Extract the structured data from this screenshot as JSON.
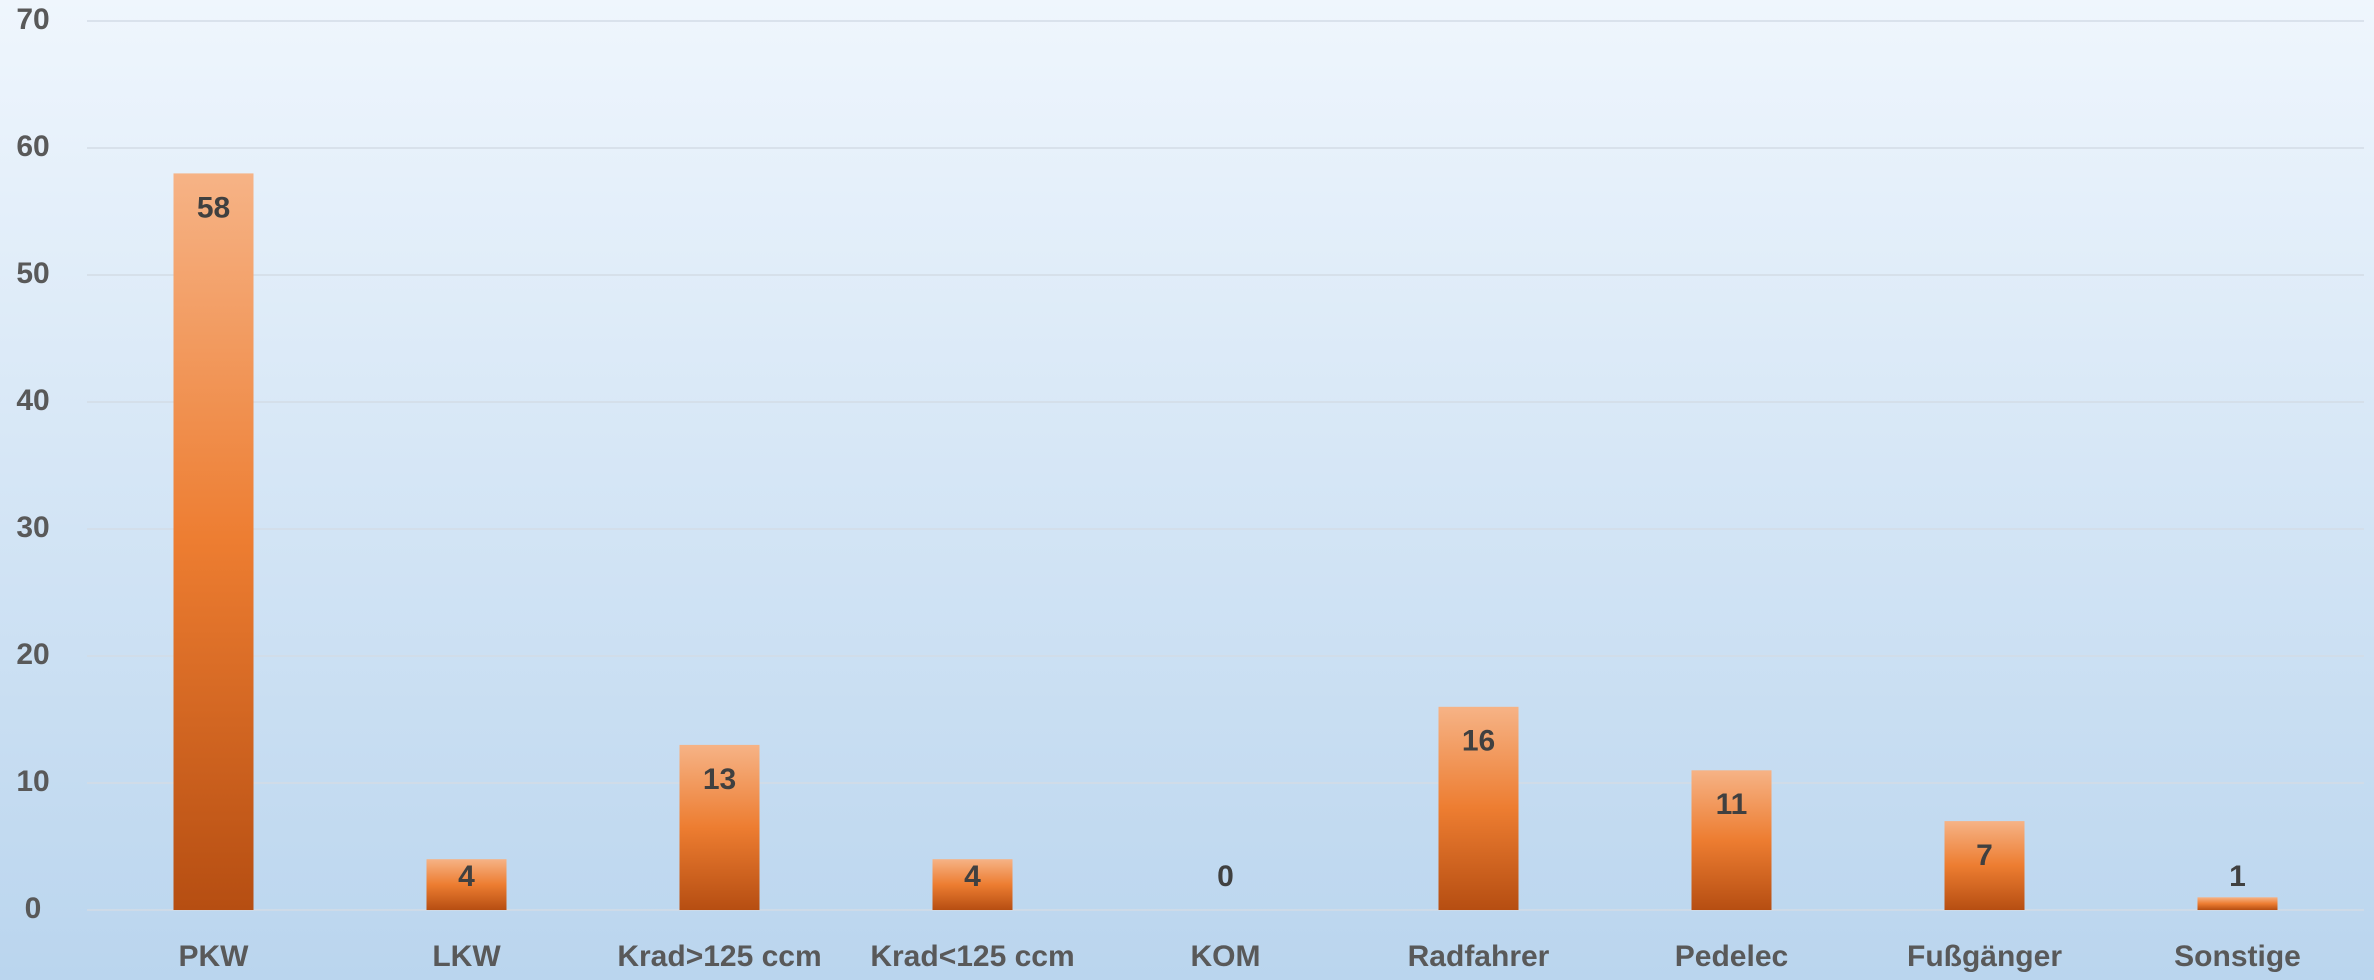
{
  "chart_data": {
    "type": "bar",
    "categories": [
      "PKW",
      "LKW",
      "Krad>125 ccm",
      "Krad<125 ccm",
      "KOM",
      "Radfahrer",
      "Pedelec",
      "Fußgänger",
      "Sonstige"
    ],
    "values": [
      58,
      4,
      13,
      4,
      0,
      16,
      11,
      7,
      1
    ],
    "color": "#ed7d31",
    "ylim": [
      0,
      70
    ],
    "yticks": [
      0,
      10,
      20,
      30,
      40,
      50,
      60,
      70
    ],
    "grid": true,
    "data_labels": true
  }
}
